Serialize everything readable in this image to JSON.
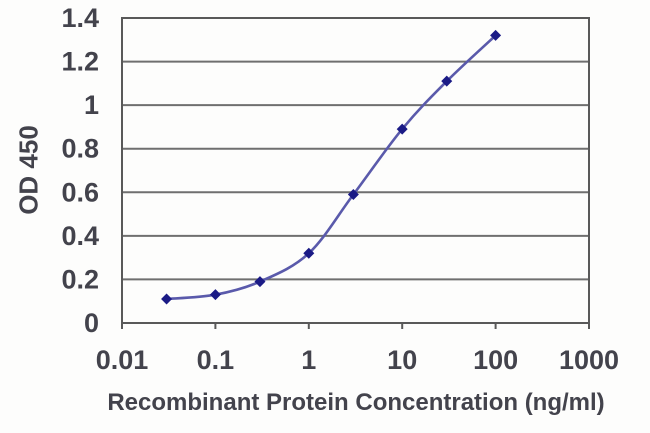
{
  "chart_data": {
    "type": "line",
    "title": "",
    "xlabel": "Recombinant Protein Concentration (ng/ml)",
    "ylabel": "OD 450",
    "x_scale": "log",
    "x": [
      0.03,
      0.1,
      0.3,
      1,
      3,
      10,
      30,
      100
    ],
    "y": [
      0.11,
      0.13,
      0.19,
      0.32,
      0.59,
      0.89,
      1.11,
      1.32
    ],
    "xlim": [
      0.01,
      1000
    ],
    "ylim": [
      0,
      1.4
    ],
    "xtick_values": [
      0.01,
      0.1,
      1,
      10,
      100,
      1000
    ],
    "xtick_labels": [
      "0.01",
      "0.1",
      "1",
      "10",
      "100",
      "1000"
    ],
    "ytick_values": [
      0,
      0.2,
      0.4,
      0.6,
      0.8,
      1.0,
      1.2,
      1.4
    ],
    "ytick_labels": [
      "0",
      "0.2",
      "0.4",
      "0.6",
      "0.8",
      "1",
      "1.2",
      "1.4"
    ],
    "grid": "horizontal",
    "legend": "none",
    "marker": "diamond",
    "colors": {
      "line": "#5a5aab",
      "marker": "#1b1b86",
      "gridline": "#6f6f6f",
      "border": "#595959",
      "text": "#43434c"
    }
  }
}
